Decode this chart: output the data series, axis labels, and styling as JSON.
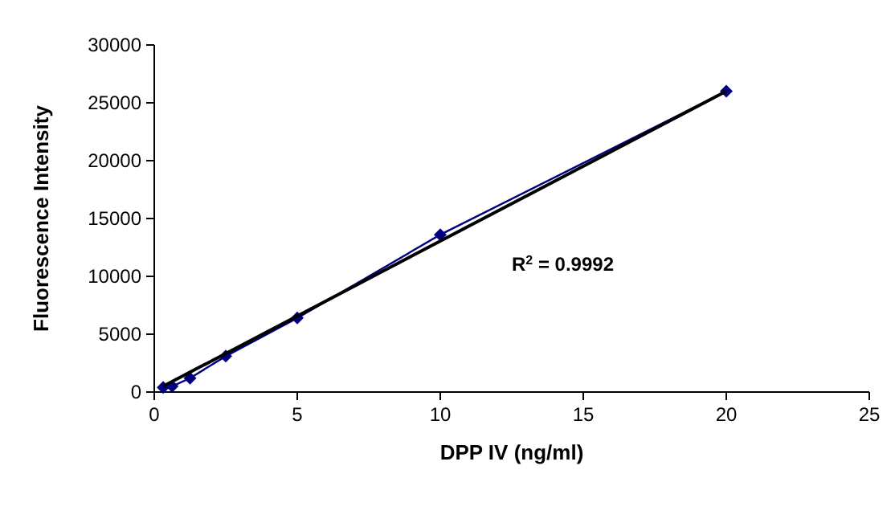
{
  "chart_data": {
    "type": "line",
    "xlabel": "DPP IV  (ng/ml)",
    "ylabel": "Fluorescence Intensity",
    "xlim": [
      0,
      25
    ],
    "xticks": [
      0,
      5,
      10,
      15,
      20,
      25
    ],
    "ylim": [
      0,
      30000
    ],
    "yticks": [
      0,
      5000,
      10000,
      15000,
      20000,
      25000,
      30000
    ],
    "series": [
      {
        "color": "#000080",
        "x": [
          0.3125,
          0.625,
          1.25,
          2.5,
          5,
          10,
          20
        ],
        "values": [
          400,
          500,
          1200,
          3100,
          6400,
          13600,
          26000
        ],
        "marker": "diamond"
      },
      {
        "color": "#000000",
        "x": [
          0.3125,
          20
        ],
        "values": [
          500,
          26000
        ],
        "marker": "none"
      }
    ],
    "annotations": [
      "R$^{2}$ = 0.9992"
    ],
    "grid": false
  }
}
